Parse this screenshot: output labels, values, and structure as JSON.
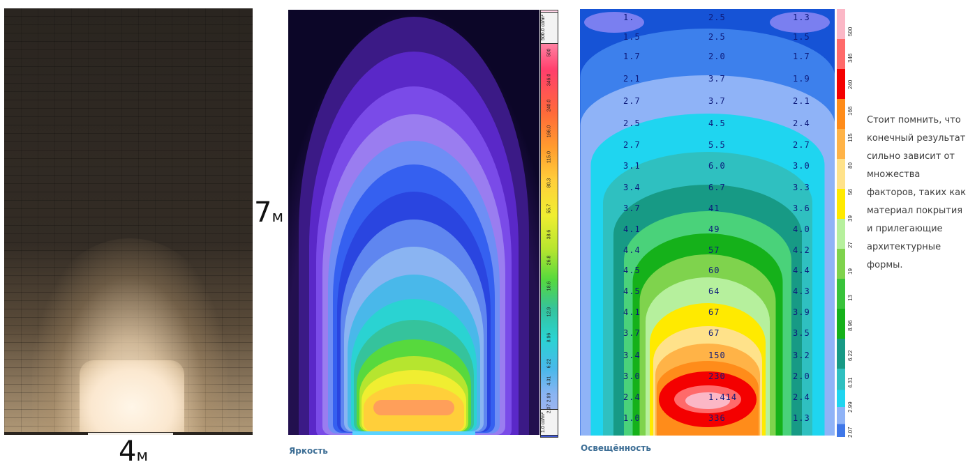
{
  "wall_panel": {
    "width_label": "4",
    "width_unit": "м",
    "height_label": "7",
    "height_unit": "м"
  },
  "luminance_panel": {
    "caption": "Яркость",
    "scale_top": "500.0 cd/m²",
    "scale_bottom": "1.0 cd/m²",
    "scale_ticks": [
      "500",
      "346.0",
      "240.0",
      "166.0",
      "115.0",
      "80.3",
      "55.7",
      "38.6",
      "26.8",
      "18.6",
      "12.9",
      "8.96",
      "6.22",
      "4.31",
      "2.99",
      "2.07"
    ]
  },
  "illuminance_panel": {
    "caption": "Освещённость",
    "scale_ticks": [
      "500",
      "346",
      "240",
      "166",
      "115",
      "80",
      "56",
      "39",
      "27",
      "19",
      "13",
      "8.96",
      "6.22",
      "4.31",
      "2.99",
      "2.07"
    ],
    "grid_values": {
      "left": [
        "1.",
        "1.5",
        "1.7",
        "2.1",
        "2.7",
        "2.5",
        "2.7",
        "3.1",
        "3.4",
        "3.7",
        "4.1",
        "4.4",
        "4.5",
        "4.5",
        "4.1",
        "3.7",
        "3.4",
        "3.0",
        "2.4",
        "1.0"
      ],
      "center": [
        "2.5",
        "2.5",
        "2.0",
        "3.7",
        "3.7",
        "4.5",
        "5.5",
        "6.0",
        "6.7",
        "41",
        "49",
        "57",
        "60",
        "64",
        "67",
        "67",
        "150",
        "230",
        "1.414",
        "336"
      ],
      "right": [
        "1.3",
        "1.5",
        "1.7",
        "1.9",
        "2.1",
        "2.4",
        "2.7",
        "3.0",
        "3.3",
        "3.6",
        "4.0",
        "4.2",
        "4.4",
        "4.3",
        "3.9",
        "3.5",
        "3.2",
        "2.0",
        "2.4",
        "1.3"
      ]
    }
  },
  "side_note": "Стоит помнить, что конечный результат сильно зависит от множества факторов, таких как материал покрытия и прилегающие архитектурные формы.",
  "colors": {
    "caption": "#3d6e95",
    "note_text": "#3d3d3d",
    "illuminance_background": "#1653d6"
  }
}
